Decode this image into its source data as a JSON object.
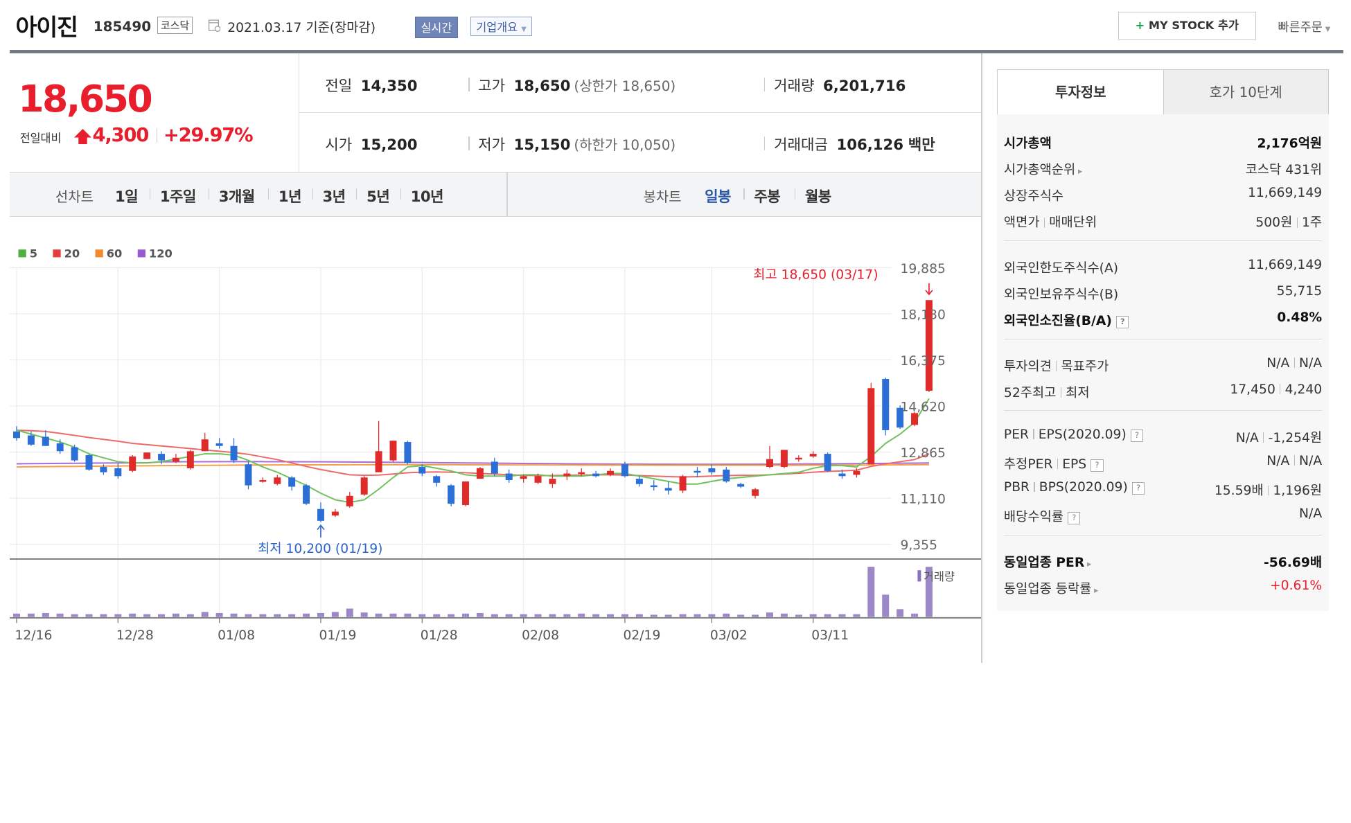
{
  "header": {
    "name": "아이진",
    "code": "185490",
    "market": "코스닥",
    "date": "2021.03.17 기준(장마감)",
    "realtime_btn": "실시간",
    "company_btn": "기업개요",
    "mystock_btn": "MY STOCK 추가",
    "mystock_plus": "+",
    "quick_order": "빠른주문"
  },
  "price": {
    "current": "18,650",
    "change_label": "전일대비",
    "change_value": "4,300",
    "change_pct": "+29.97%",
    "direction": "up"
  },
  "stats": {
    "prev_label": "전일",
    "prev": "14,350",
    "high_label": "고가",
    "high": "18,650",
    "upper_limit": "(상한가 18,650)",
    "volume_label": "거래량",
    "volume": "6,201,716",
    "open_label": "시가",
    "open": "15,200",
    "low_label": "저가",
    "low": "15,150",
    "lower_limit": "(하한가 10,050)",
    "amount_label": "거래대금",
    "amount": "106,126",
    "amount_unit": "백만"
  },
  "periods": {
    "line_label": "선차트",
    "line_items": [
      "1일",
      "1주일",
      "3개월",
      "1년",
      "3년",
      "5년",
      "10년"
    ],
    "candle_label": "봉차트",
    "candle_items": [
      "일봉",
      "주봉",
      "월봉"
    ],
    "active_candle": "일봉"
  },
  "chart_data": {
    "type": "candlestick",
    "legend": [
      {
        "name": "5",
        "color": "#4caf3e"
      },
      {
        "name": "20",
        "color": "#e63c3c"
      },
      {
        "name": "60",
        "color": "#f08a2c"
      },
      {
        "name": "120",
        "color": "#9b59d0"
      }
    ],
    "y_ticks": [
      "19,885",
      "18,130",
      "16,375",
      "14,620",
      "12,865",
      "11,110",
      "9,355"
    ],
    "ylim": [
      9355,
      19885
    ],
    "x_ticks": [
      {
        "label": "12/16",
        "i": 0
      },
      {
        "label": "12/28",
        "i": 7
      },
      {
        "label": "01/08",
        "i": 14
      },
      {
        "label": "01/19",
        "i": 21
      },
      {
        "label": "01/28",
        "i": 28
      },
      {
        "label": "02/08",
        "i": 35
      },
      {
        "label": "02/19",
        "i": 42
      },
      {
        "label": "03/02",
        "i": 48
      },
      {
        "label": "03/11",
        "i": 55
      }
    ],
    "max_annotation": "최고 18,650 (03/17)",
    "min_annotation": "최저 10,200 (01/19)",
    "volume_label": "거래량",
    "candles": [
      [
        13650,
        13850,
        13400,
        13300
      ],
      [
        13500,
        13650,
        13150,
        13100
      ],
      [
        13450,
        13700,
        13100,
        13100
      ],
      [
        13200,
        13350,
        12900,
        12800
      ],
      [
        13050,
        13150,
        12550,
        12500
      ],
      [
        12750,
        12800,
        12200,
        12150
      ],
      [
        12300,
        12400,
        12100,
        12000
      ],
      [
        12250,
        12450,
        11950,
        11850
      ],
      [
        12150,
        12750,
        12700,
        12100
      ],
      [
        12600,
        12850,
        12850,
        12600
      ],
      [
        12800,
        12900,
        12550,
        12400
      ],
      [
        12500,
        12800,
        12650,
        12450
      ],
      [
        12250,
        12950,
        12900,
        12200
      ],
      [
        12900,
        13600,
        13350,
        12900
      ],
      [
        13200,
        13400,
        13100,
        13000
      ],
      [
        13100,
        13400,
        12550,
        12450
      ],
      [
        12400,
        12500,
        11600,
        11450
      ],
      [
        11800,
        11900,
        11800,
        11700
      ],
      [
        11650,
        12000,
        11900,
        11600
      ],
      [
        11900,
        11950,
        11550,
        11400
      ],
      [
        11600,
        11650,
        10900,
        10850
      ],
      [
        10700,
        10950,
        10250,
        10200
      ],
      [
        10450,
        10700,
        10600,
        10400
      ],
      [
        10800,
        11350,
        11200,
        10750
      ],
      [
        11250,
        11950,
        11900,
        11200
      ],
      [
        12100,
        14050,
        12900,
        12100
      ],
      [
        12550,
        13300,
        13300,
        12500
      ],
      [
        13250,
        13300,
        12450,
        12400
      ],
      [
        12300,
        12400,
        12050,
        11950
      ],
      [
        11950,
        12000,
        11700,
        11550
      ],
      [
        11600,
        11650,
        10900,
        10800
      ],
      [
        10850,
        11750,
        11750,
        10800
      ],
      [
        11850,
        12300,
        12250,
        11850
      ],
      [
        12500,
        12650,
        12050,
        11950
      ],
      [
        12050,
        12200,
        11800,
        11700
      ],
      [
        11850,
        12000,
        11950,
        11700
      ],
      [
        11700,
        12050,
        11950,
        11650
      ],
      [
        11650,
        12050,
        11850,
        11500
      ],
      [
        11950,
        12200,
        12050,
        11800
      ],
      [
        12100,
        12250,
        12100,
        11950
      ],
      [
        12050,
        12150,
        11950,
        11900
      ],
      [
        12000,
        12250,
        12150,
        11950
      ],
      [
        12400,
        12500,
        11950,
        11900
      ],
      [
        11850,
        11950,
        11650,
        11550
      ],
      [
        11600,
        11800,
        11550,
        11400
      ],
      [
        11500,
        11750,
        11400,
        11250
      ],
      [
        11400,
        12000,
        11950,
        11300
      ],
      [
        12150,
        12300,
        12100,
        11900
      ],
      [
        12250,
        12400,
        12100,
        12000
      ],
      [
        12200,
        12300,
        11750,
        11700
      ],
      [
        11650,
        11700,
        11550,
        11500
      ],
      [
        11200,
        11500,
        11450,
        11100
      ],
      [
        12300,
        13100,
        12600,
        12250
      ],
      [
        12300,
        12950,
        12950,
        12250
      ],
      [
        12600,
        12750,
        12650,
        12500
      ],
      [
        12700,
        12900,
        12800,
        12650
      ],
      [
        12800,
        12850,
        12150,
        12100
      ],
      [
        12050,
        12200,
        11950,
        11850
      ],
      [
        12000,
        12250,
        12150,
        11900
      ],
      [
        12400,
        15500,
        15300,
        12400
      ],
      [
        15650,
        15700,
        13700,
        13500
      ],
      [
        14550,
        14650,
        13800,
        13750
      ],
      [
        13900,
        14400,
        14350,
        13850
      ],
      [
        15200,
        18650,
        18650,
        15150
      ]
    ],
    "volumes": [
      6,
      6,
      7,
      6,
      5,
      5,
      5,
      5,
      6,
      5,
      5,
      6,
      5,
      9,
      7,
      6,
      5,
      5,
      5,
      5,
      6,
      7,
      9,
      15,
      8,
      6,
      6,
      6,
      5,
      5,
      5,
      6,
      7,
      5,
      5,
      5,
      5,
      5,
      5,
      6,
      5,
      5,
      5,
      5,
      4,
      4,
      5,
      5,
      5,
      6,
      4,
      4,
      8,
      6,
      4,
      5,
      5,
      5,
      5,
      90,
      40,
      14,
      6,
      90
    ]
  },
  "right_panel": {
    "tab_invest": "투자정보",
    "tab_hoga": "호가 10단계",
    "rows_a": [
      {
        "k": "시가총액",
        "v": "2,176억원",
        "bold": true
      },
      {
        "k": "시가총액순위",
        "v": "코스닥 431위",
        "caret": true
      },
      {
        "k": "상장주식수",
        "v": "11,669,149"
      },
      {
        "k": "액면가",
        "k2": "매매단위",
        "v": "500원",
        "v2": "1주"
      }
    ],
    "rows_b": [
      {
        "k": "외국인한도주식수(A)",
        "v": "11,669,149"
      },
      {
        "k": "외국인보유주식수(B)",
        "v": "55,715"
      },
      {
        "k": "외국인소진율(B/A)",
        "v": "0.48%",
        "bold": true,
        "help": true
      }
    ],
    "rows_c": [
      {
        "k": "투자의견",
        "k2": "목표주가",
        "v": "N/A",
        "v2": "N/A"
      },
      {
        "k": "52주최고",
        "k2": "최저",
        "v": "17,450",
        "v2": "4,240"
      }
    ],
    "rows_d": [
      {
        "k": "PER",
        "k2": "EPS(2020.09)",
        "v": "N/A",
        "v2": "-1,254원",
        "help": true
      },
      {
        "k": "추정PER",
        "k2": "EPS",
        "v": "N/A",
        "v2": "N/A",
        "help": true
      },
      {
        "k": "PBR",
        "k2": "BPS(2020.09)",
        "v": "15.59배",
        "v2": "1,196원",
        "help": true
      },
      {
        "k": "배당수익률",
        "v": "N/A",
        "help": true
      }
    ],
    "rows_e": [
      {
        "k": "동일업종 PER",
        "v": "-56.69배",
        "bold": true,
        "caret": true
      },
      {
        "k": "동일업종 등락률",
        "v": "+0.61%",
        "caret": true,
        "red": true
      }
    ],
    "help_glyph": "?"
  }
}
